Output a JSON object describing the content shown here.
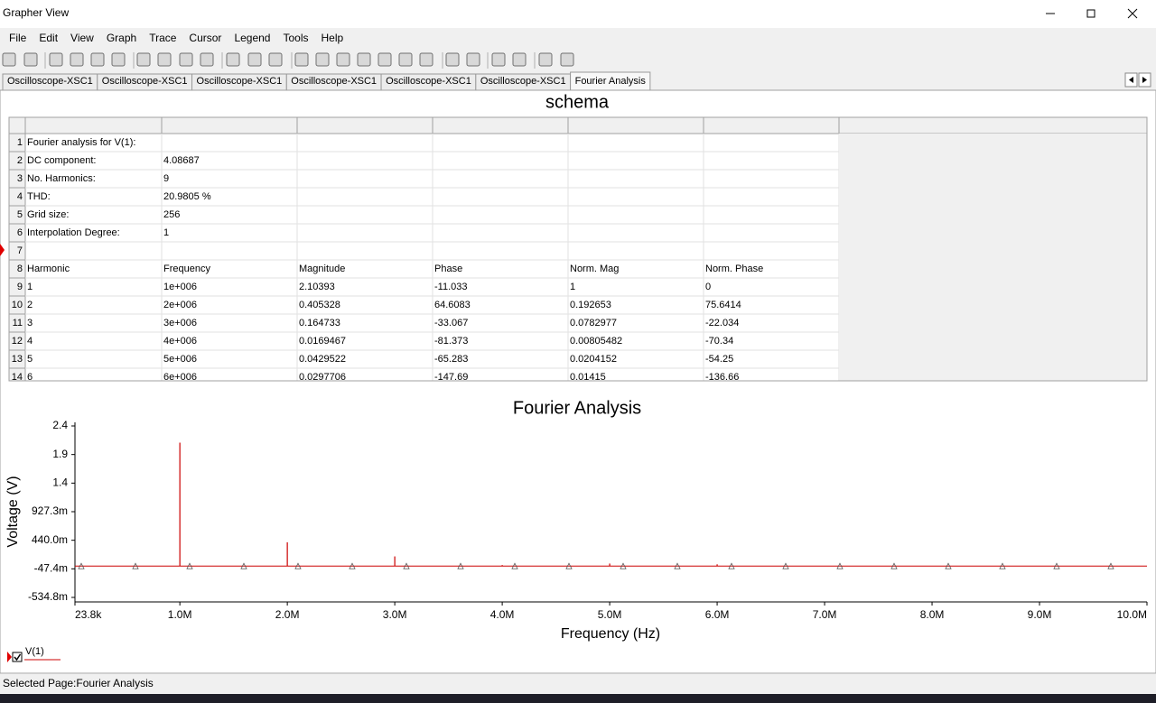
{
  "window": {
    "title": "Grapher View"
  },
  "menu": [
    "File",
    "Edit",
    "View",
    "Graph",
    "Trace",
    "Cursor",
    "Legend",
    "Tools",
    "Help"
  ],
  "tabs": [
    "Oscilloscope-XSC1",
    "Oscilloscope-XSC1",
    "Oscilloscope-XSC1",
    "Oscilloscope-XSC1",
    "Oscilloscope-XSC1",
    "Oscilloscope-XSC1",
    "Fourier Analysis"
  ],
  "table": {
    "title": "schema",
    "row_numbers": [
      1,
      2,
      3,
      4,
      5,
      6,
      7,
      8,
      9,
      10,
      11,
      12,
      13,
      14
    ],
    "rows": [
      [
        "Fourier analysis for V(1):"
      ],
      [
        "DC component:",
        "4.08687"
      ],
      [
        "No. Harmonics:",
        "9"
      ],
      [
        "THD:",
        "20.9805 %"
      ],
      [
        "Grid size:",
        "256"
      ],
      [
        "Interpolation Degree:",
        "1"
      ],
      [],
      [
        "Harmonic",
        "Frequency",
        "Magnitude",
        "Phase",
        "Norm. Mag",
        "Norm. Phase"
      ],
      [
        "1",
        "1e+006",
        "2.10393",
        "-11.033",
        "1",
        "0"
      ],
      [
        "2",
        "2e+006",
        "0.405328",
        "64.6083",
        "0.192653",
        "75.6414"
      ],
      [
        "3",
        "3e+006",
        "0.164733",
        "-33.067",
        "0.0782977",
        "-22.034"
      ],
      [
        "4",
        "4e+006",
        "0.0169467",
        "-81.373",
        "0.00805482",
        "-70.34"
      ],
      [
        "5",
        "5e+006",
        "0.0429522",
        "-65.283",
        "0.0204152",
        "-54.25"
      ],
      [
        "6",
        "6e+006",
        "0.0297706",
        "-147.69",
        "0.01415",
        "-136.66"
      ]
    ]
  },
  "chart_data": {
    "type": "stem",
    "title": "Fourier Analysis",
    "x_label": "Frequency (Hz)",
    "y_label": "Voltage (V)",
    "xlim": [
      23800,
      10000000
    ],
    "xticks": [
      {
        "value": 23800,
        "label": "23.8k"
      },
      {
        "value": 1000000,
        "label": "1.0M"
      },
      {
        "value": 2000000,
        "label": "2.0M"
      },
      {
        "value": 3000000,
        "label": "3.0M"
      },
      {
        "value": 4000000,
        "label": "4.0M"
      },
      {
        "value": 5000000,
        "label": "5.0M"
      },
      {
        "value": 6000000,
        "label": "6.0M"
      },
      {
        "value": 7000000,
        "label": "7.0M"
      },
      {
        "value": 8000000,
        "label": "8.0M"
      },
      {
        "value": 9000000,
        "label": "9.0M"
      },
      {
        "value": 10000000,
        "label": "10.0M"
      }
    ],
    "ylim": [
      -0.5348,
      2.3895
    ],
    "yticks": [
      {
        "value": -0.5348,
        "label": "-534.8m"
      },
      {
        "value": -0.0474,
        "label": "-47.4m"
      },
      {
        "value": 0.44,
        "label": "440.0m"
      },
      {
        "value": 0.9273,
        "label": "927.3m"
      },
      {
        "value": 1.4147,
        "label": "1.4"
      },
      {
        "value": 1.9021,
        "label": "1.9"
      },
      {
        "value": 2.3895,
        "label": "2.4"
      }
    ],
    "grid": false,
    "legend": "bottom-left",
    "series": [
      {
        "name": "V(1)",
        "color": "#cc0000",
        "x": [
          1000000,
          2000000,
          3000000,
          4000000,
          5000000,
          6000000
        ],
        "values": [
          2.10393,
          0.405328,
          0.164733,
          0.0169467,
          0.0429522,
          0.0297706
        ]
      }
    ]
  },
  "status": "Selected Page:Fourier Analysis"
}
